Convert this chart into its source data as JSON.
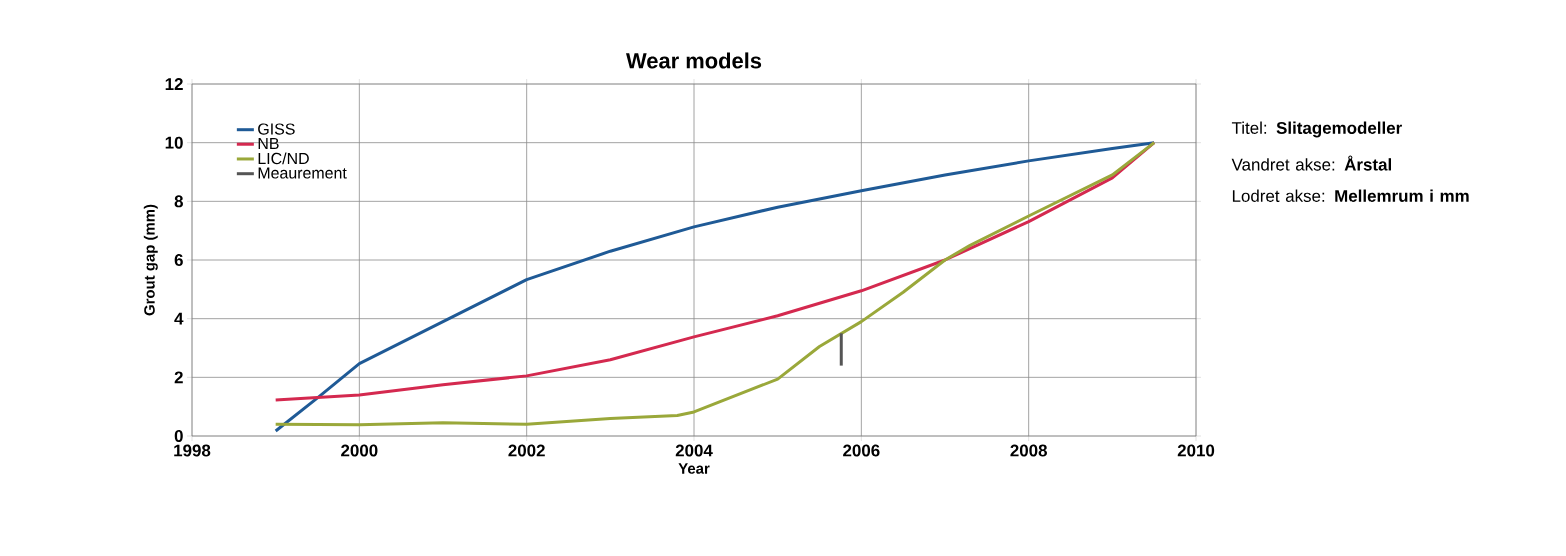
{
  "chart_data": {
    "type": "line",
    "title": "Wear models",
    "xlabel": "Year",
    "ylabel": "Grout gap (mm)",
    "xlim": [
      1998,
      2010
    ],
    "xticks": [
      1998,
      2000,
      2002,
      2004,
      2006,
      2008,
      2010
    ],
    "ylim": [
      0,
      12
    ],
    "yticks": [
      0,
      2,
      4,
      6,
      8,
      10,
      12
    ],
    "grid": true,
    "legend": "top left",
    "series": [
      {
        "name": "GISS",
        "color": "#1f5a96",
        "x": [
          1999,
          1999.5,
          2000,
          2001,
          2002,
          2003,
          2004,
          2005,
          2006,
          2007,
          2008,
          2009,
          2009.5
        ],
        "values": [
          0.17,
          1.3,
          2.47,
          3.9,
          5.33,
          6.3,
          7.13,
          7.8,
          8.36,
          8.9,
          9.38,
          9.8,
          10.0
        ]
      },
      {
        "name": "NB",
        "color": "#d4294f",
        "x": [
          1999,
          2000,
          2001,
          2002,
          2003,
          2004,
          2005,
          2006,
          2007,
          2008,
          2009,
          2009.5
        ],
        "values": [
          1.23,
          1.4,
          1.75,
          2.05,
          2.6,
          3.38,
          4.1,
          4.95,
          6.0,
          7.31,
          8.8,
          10.0
        ]
      },
      {
        "name": "LIC/ND",
        "color": "#9aa83a",
        "x": [
          1999,
          2000,
          2001,
          2002,
          2003,
          2003.8,
          2004,
          2005,
          2005.5,
          2006,
          2006.5,
          2007,
          2007.3,
          2008,
          2009,
          2009.5
        ],
        "values": [
          0.4,
          0.38,
          0.45,
          0.4,
          0.6,
          0.7,
          0.82,
          1.94,
          3.05,
          3.9,
          4.9,
          6.0,
          6.5,
          7.5,
          8.9,
          10.0
        ]
      },
      {
        "name": "Meaurement",
        "color": "#555555",
        "x": [
          2005.76,
          2005.76
        ],
        "values": [
          2.4,
          3.5
        ]
      }
    ],
    "annotations": [
      "Titel: **Slitagemodeller**",
      "Vandret akse: **Årstal**",
      "Lodret akse: **Mellemrum i mm**"
    ]
  }
}
